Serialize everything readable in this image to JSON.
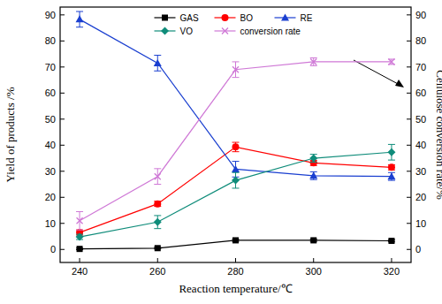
{
  "chart_data": {
    "type": "line",
    "x_label": "Reaction temperature/℃",
    "y_label": "Yield of products /%",
    "y2_label": "Cellulose conversion rate/%",
    "x": [
      240,
      260,
      280,
      300,
      320
    ],
    "xlim": [
      235,
      325
    ],
    "xticks": [
      240,
      260,
      280,
      300,
      320
    ],
    "ylim": [
      -5,
      93
    ],
    "yticks": [
      0,
      10,
      20,
      30,
      40,
      50,
      60,
      70,
      80,
      90
    ],
    "y2lim": [
      -5,
      93
    ],
    "y2ticks": [
      0,
      10,
      20,
      30,
      40,
      50,
      60,
      70,
      80,
      90
    ],
    "legend": "upper center",
    "series": [
      {
        "name": "GAS",
        "color": "#000000",
        "marker": "square",
        "values": [
          0.2,
          0.5,
          3.5,
          3.5,
          3.3
        ],
        "errors": [
          0.3,
          0.3,
          0.4,
          0.4,
          0.4
        ]
      },
      {
        "name": "BO",
        "color": "#ff0000",
        "marker": "circle",
        "values": [
          6.5,
          17.5,
          39.3,
          33.2,
          31.5
        ],
        "errors": [
          1,
          1,
          1.8,
          1,
          1
        ]
      },
      {
        "name": "RE",
        "color": "#1a3fd0",
        "marker": "triangle",
        "values": [
          88.3,
          71.5,
          30.8,
          28.3,
          28.0
        ],
        "errors": [
          3,
          3,
          3,
          1.5,
          1.5
        ]
      },
      {
        "name": "VO",
        "color": "#0f8c7a",
        "marker": "diamond",
        "values": [
          4.8,
          10.5,
          26.5,
          35.0,
          37.3
        ],
        "errors": [
          1,
          2.5,
          3,
          1.5,
          3
        ]
      },
      {
        "name": "conversion rate",
        "color": "#cf78d6",
        "marker": "x",
        "axis": "y2",
        "values": [
          11,
          28,
          69,
          72,
          72
        ],
        "errors": [
          3.5,
          3,
          3,
          1.5,
          1
        ]
      }
    ]
  }
}
